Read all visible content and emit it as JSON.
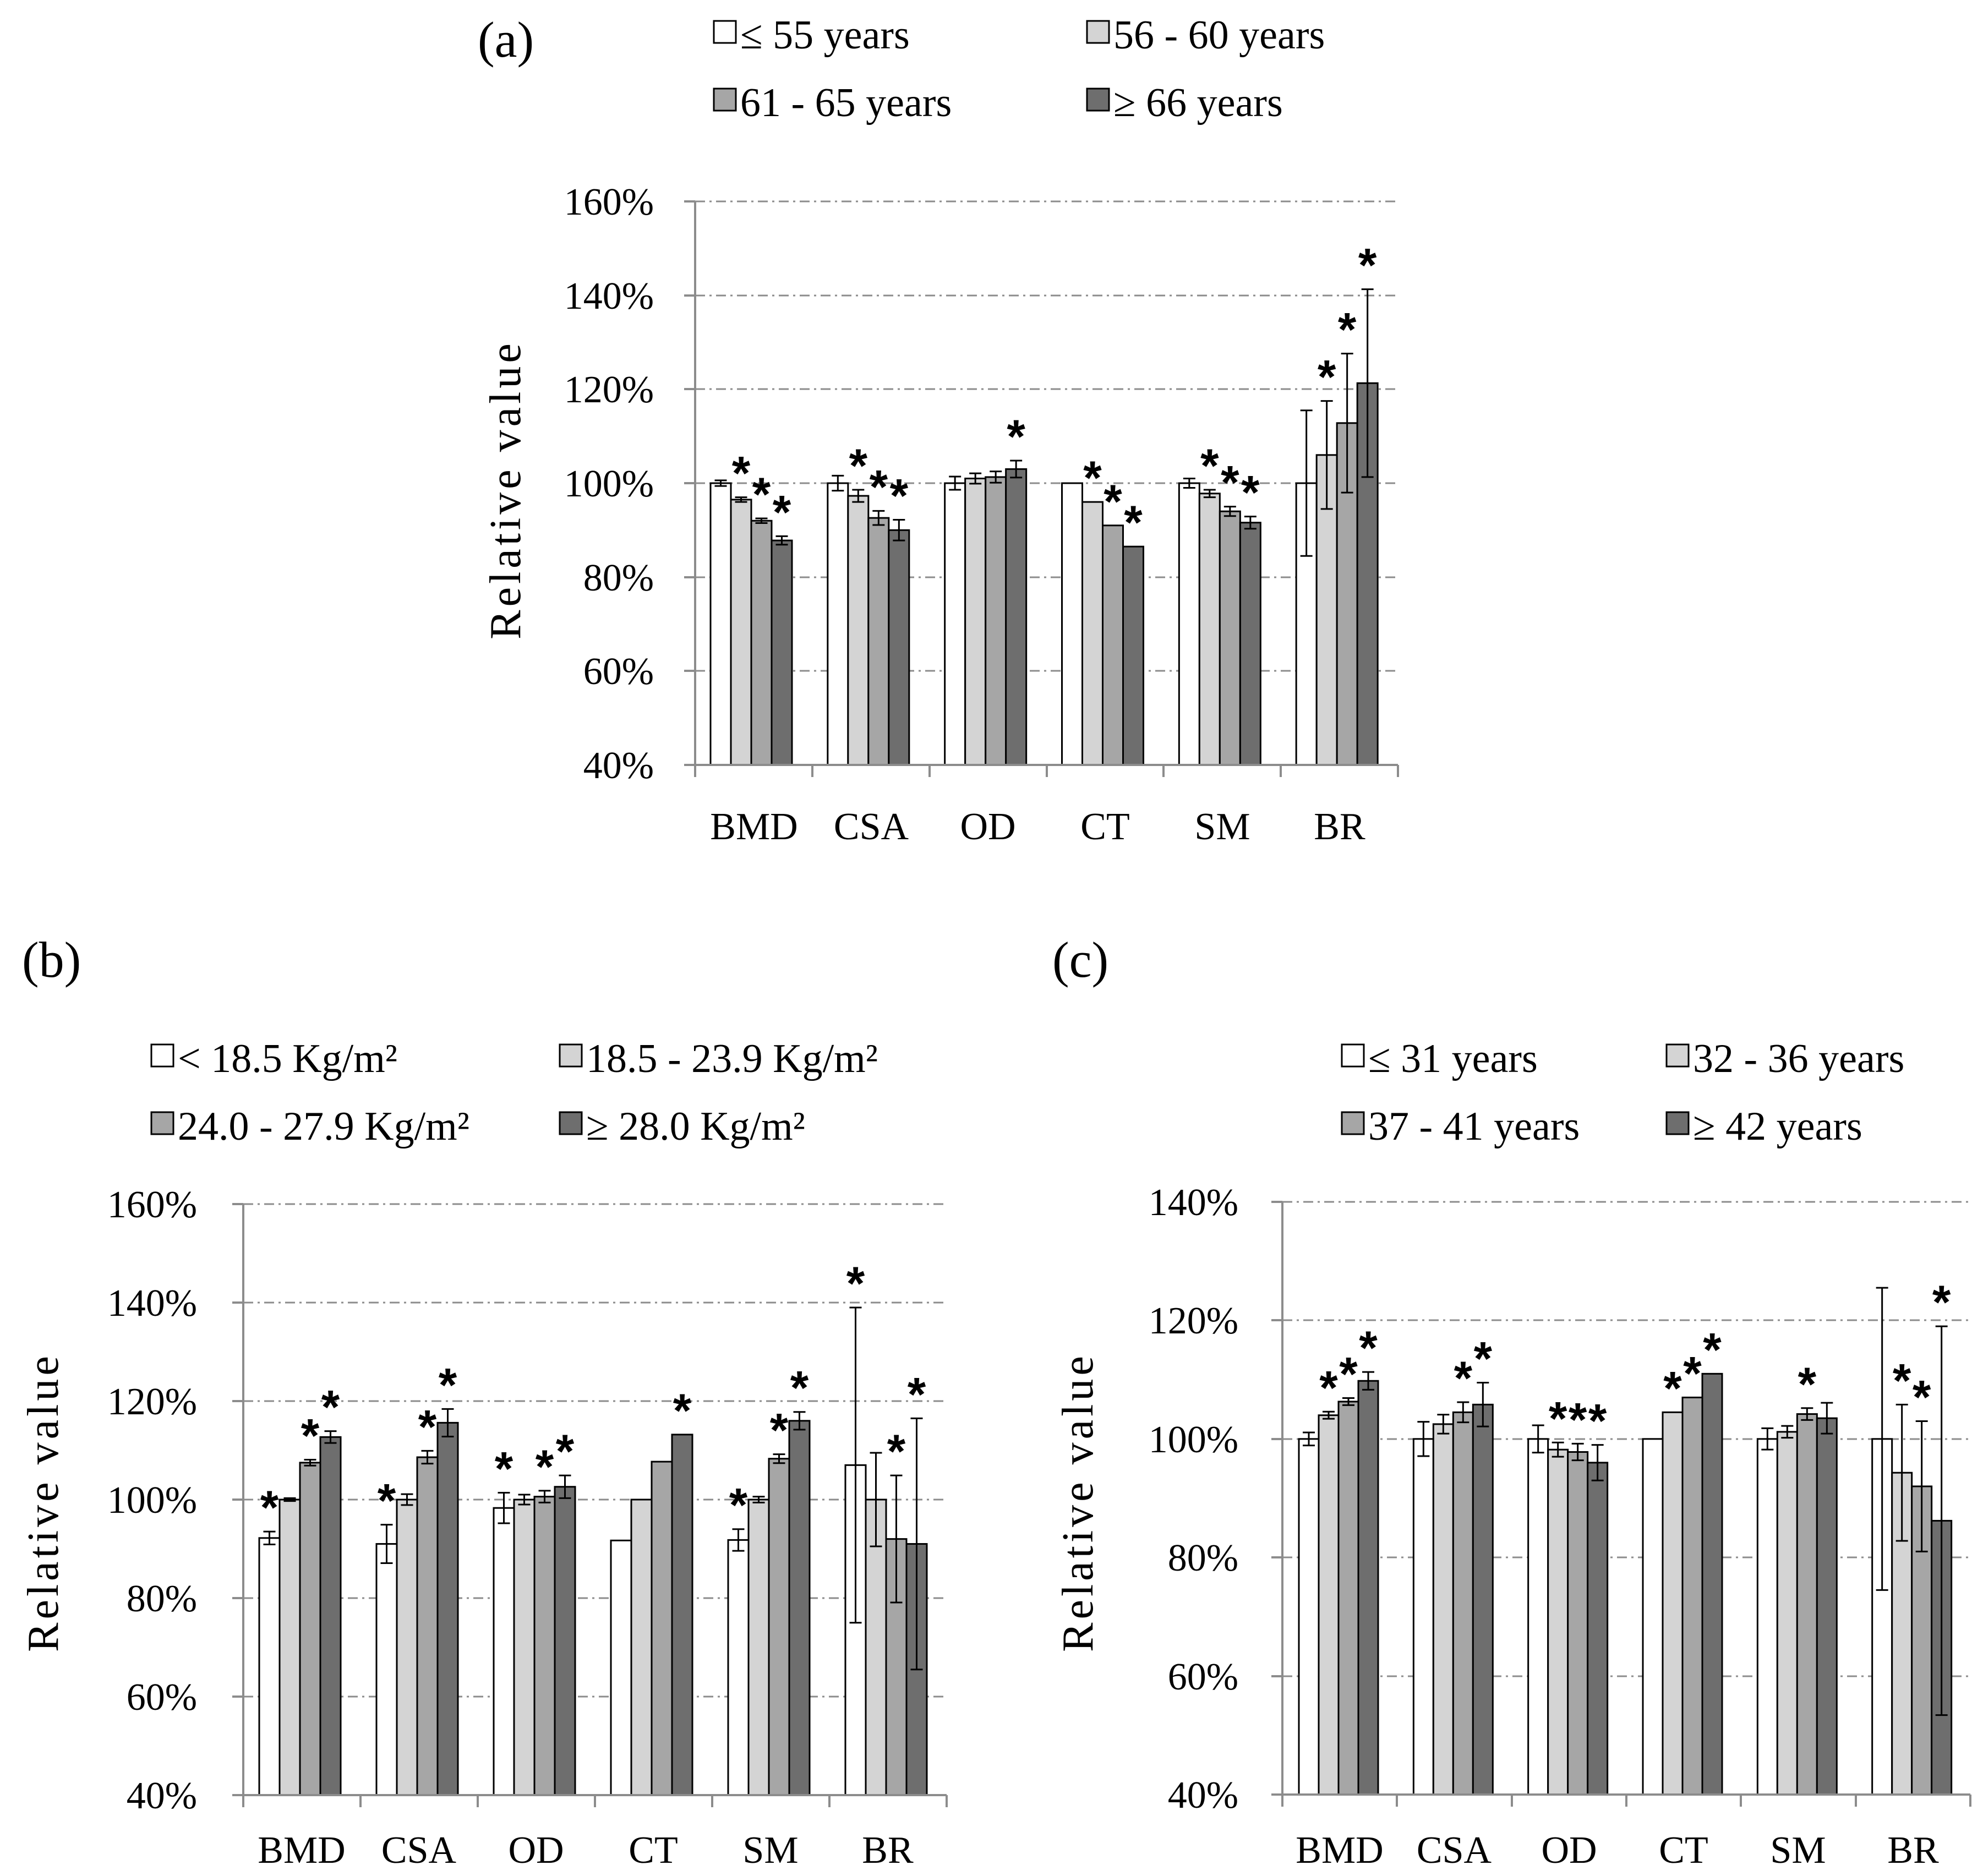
{
  "figure": {
    "panels": [
      "(a)",
      "(b)",
      "(c)"
    ]
  },
  "chart_data": [
    {
      "type": "bar",
      "panel": "(a)",
      "ylabel": "Relative value",
      "ylim": [
        40,
        160
      ],
      "yticks": [
        "40%",
        "60%",
        "80%",
        "100%",
        "120%",
        "140%",
        "160%"
      ],
      "categories": [
        "BMD",
        "CSA",
        "OD",
        "CT",
        "SM",
        "BR"
      ],
      "series": [
        {
          "name": "≤ 55 years",
          "color": "#ffffff",
          "values": [
            100,
            100,
            100,
            100,
            100,
            100
          ],
          "errors": [
            0.6,
            1.6,
            1.4,
            0,
            1.0,
            15.5
          ]
        },
        {
          "name": "56 - 60 years",
          "color": "#d4d4d4",
          "values": [
            96.5,
            97.3,
            101,
            96,
            97.8,
            106
          ],
          "errors": [
            0.5,
            1.3,
            1.1,
            0,
            0.8,
            11.5
          ]
        },
        {
          "name": "61 - 65 years",
          "color": "#a6a6a6",
          "values": [
            92,
            92.6,
            101.3,
            91,
            94,
            112.8
          ],
          "errors": [
            0.5,
            1.5,
            1.2,
            0,
            1.0,
            14.8
          ]
        },
        {
          "name": "≥ 66 years",
          "color": "#6e6e6e",
          "values": [
            87.8,
            90,
            103,
            86.5,
            91.6,
            121.3
          ],
          "errors": [
            0.9,
            2.2,
            1.8,
            0,
            1.3,
            20
          ]
        }
      ],
      "stars": [
        [
          0,
          1,
          0
        ],
        [
          0,
          2,
          0
        ],
        [
          0,
          3,
          0
        ],
        [
          1,
          1,
          0
        ],
        [
          1,
          2,
          0
        ],
        [
          1,
          3,
          0
        ],
        [
          2,
          3,
          0
        ],
        [
          3,
          1,
          0
        ],
        [
          3,
          2,
          0
        ],
        [
          3,
          3,
          0
        ],
        [
          4,
          1,
          0
        ],
        [
          4,
          2,
          0
        ],
        [
          4,
          3,
          0
        ],
        [
          5,
          1,
          0
        ],
        [
          5,
          2,
          0
        ],
        [
          5,
          3,
          0
        ]
      ],
      "star_symbol": "*"
    },
    {
      "type": "bar",
      "panel": "(b)",
      "ylabel": "Relative value",
      "ylim": [
        40,
        160
      ],
      "yticks": [
        "40%",
        "60%",
        "80%",
        "100%",
        "120%",
        "140%",
        "160%"
      ],
      "categories": [
        "BMD",
        "CSA",
        "OD",
        "CT",
        "SM",
        "BR"
      ],
      "series": [
        {
          "name": "< 18.5 Kg/m²",
          "color": "#ffffff",
          "values": [
            92.2,
            91,
            98.3,
            91.7,
            91.8,
            107
          ],
          "errors": [
            1.3,
            3.9,
            3.1,
            0,
            2.2,
            32
          ]
        },
        {
          "name": "18.5 - 23.9 Kg/m²",
          "color": "#d4d4d4",
          "values": [
            100,
            100,
            100,
            100,
            100,
            100
          ],
          "errors": [
            0.3,
            1.1,
            1.0,
            0,
            0.6,
            9.5
          ]
        },
        {
          "name": "24.0 - 27.9 Kg/m²",
          "color": "#a6a6a6",
          "values": [
            107.5,
            108.6,
            100.6,
            107.7,
            108.3,
            92
          ],
          "errors": [
            0.6,
            1.3,
            1.2,
            0,
            0.9,
            12.9
          ]
        },
        {
          "name": "≥ 28.0 Kg/m²",
          "color": "#6e6e6e",
          "values": [
            112.7,
            115.6,
            102.6,
            113.2,
            116,
            91
          ],
          "errors": [
            1.2,
            2.8,
            2.3,
            0,
            1.8,
            25.5
          ]
        }
      ],
      "stars": [
        [
          0,
          0,
          0
        ],
        [
          0,
          2,
          0
        ],
        [
          0,
          3,
          0
        ],
        [
          1,
          0,
          0
        ],
        [
          1,
          2,
          0
        ],
        [
          1,
          3,
          0
        ],
        [
          2,
          0,
          0
        ],
        [
          2,
          2,
          0
        ],
        [
          2,
          3,
          0
        ],
        [
          3,
          3,
          0
        ],
        [
          4,
          0,
          0
        ],
        [
          4,
          2,
          0
        ],
        [
          4,
          3,
          0
        ],
        [
          5,
          0,
          0
        ],
        [
          5,
          2,
          0
        ],
        [
          5,
          3,
          0
        ]
      ],
      "star_symbol": "*"
    },
    {
      "type": "bar",
      "panel": "(c)",
      "ylabel": "Relative value",
      "ylim": [
        40,
        140
      ],
      "yticks": [
        "40%",
        "60%",
        "80%",
        "100%",
        "120%",
        "140%"
      ],
      "categories": [
        "BMD",
        "CSA",
        "OD",
        "CT",
        "SM",
        "BR"
      ],
      "series": [
        {
          "name": "≤ 31 years",
          "color": "#ffffff",
          "values": [
            100,
            100,
            100,
            100,
            100,
            100
          ],
          "errors": [
            1.1,
            2.9,
            2.3,
            0,
            1.8,
            25.5
          ]
        },
        {
          "name": "32 - 36 years",
          "color": "#d4d4d4",
          "values": [
            104,
            102.5,
            98.2,
            104.5,
            101.2,
            94.3
          ],
          "errors": [
            0.6,
            1.6,
            1.2,
            0,
            1.0,
            11.5
          ]
        },
        {
          "name": "37 - 41 years",
          "color": "#a6a6a6",
          "values": [
            106.3,
            104.5,
            97.8,
            107,
            104.2,
            92
          ],
          "errors": [
            0.6,
            1.7,
            1.4,
            0,
            1.0,
            11
          ]
        },
        {
          "name": "≥ 42 years",
          "color": "#6e6e6e",
          "values": [
            109.8,
            105.8,
            96,
            111,
            103.5,
            86.2
          ],
          "errors": [
            1.5,
            3.7,
            3.0,
            0,
            2.6,
            32.8
          ]
        }
      ],
      "stars": [
        [
          0,
          1,
          0
        ],
        [
          0,
          2,
          0
        ],
        [
          0,
          3,
          0
        ],
        [
          1,
          2,
          0
        ],
        [
          1,
          3,
          0
        ],
        [
          2,
          1,
          0
        ],
        [
          2,
          2,
          0
        ],
        [
          2,
          3,
          0
        ],
        [
          3,
          1,
          0
        ],
        [
          3,
          2,
          0
        ],
        [
          3,
          3,
          0
        ],
        [
          4,
          2,
          0
        ],
        [
          5,
          1,
          0
        ],
        [
          5,
          2,
          0
        ],
        [
          5,
          3,
          0
        ]
      ],
      "star_symbol": "*"
    }
  ]
}
